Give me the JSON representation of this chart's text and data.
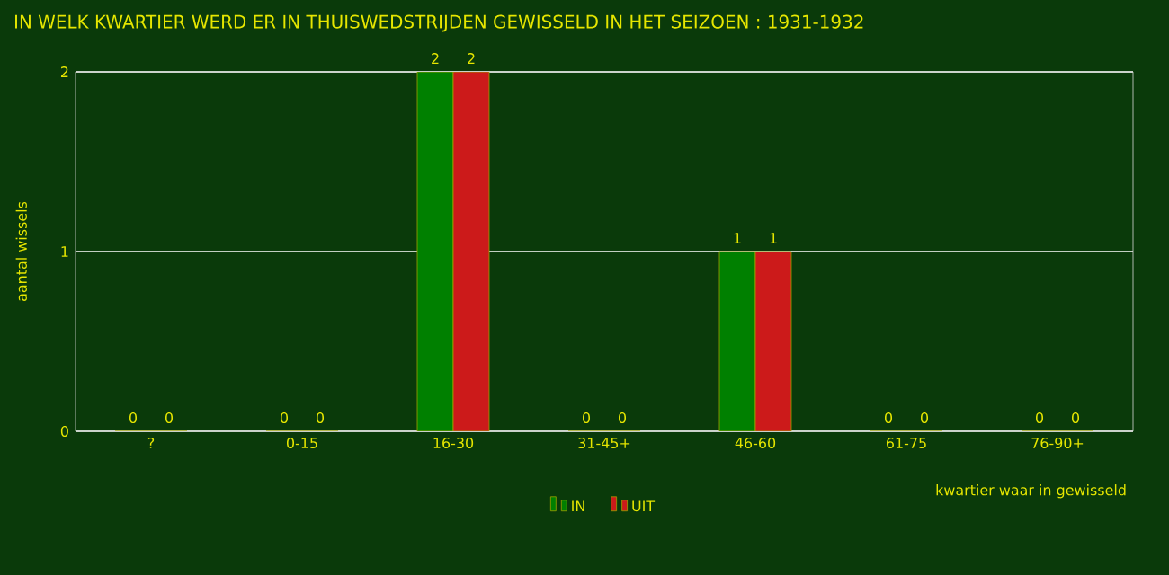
{
  "chart_data": {
    "type": "bar",
    "title": "IN WELK KWARTIER WERD ER IN THUISWEDSTRIJDEN GEWISSELD IN HET SEIZOEN : 1931-1932",
    "xlabel": "kwartier waar in gewisseld",
    "ylabel": "aantal wissels",
    "categories": [
      "?",
      "0-15",
      "16-30",
      "31-45+",
      "46-60",
      "61-75",
      "76-90+"
    ],
    "series": [
      {
        "name": "IN",
        "color": "#008000",
        "values": [
          0,
          0,
          2,
          0,
          1,
          0,
          0
        ]
      },
      {
        "name": "UIT",
        "color": "#cc1a1a",
        "values": [
          0,
          0,
          2,
          0,
          1,
          0,
          0
        ]
      }
    ],
    "ylim": [
      0,
      2
    ],
    "yticks": [
      0,
      1,
      2
    ],
    "grid": "y",
    "legend": "bottom",
    "data_labels": true
  }
}
